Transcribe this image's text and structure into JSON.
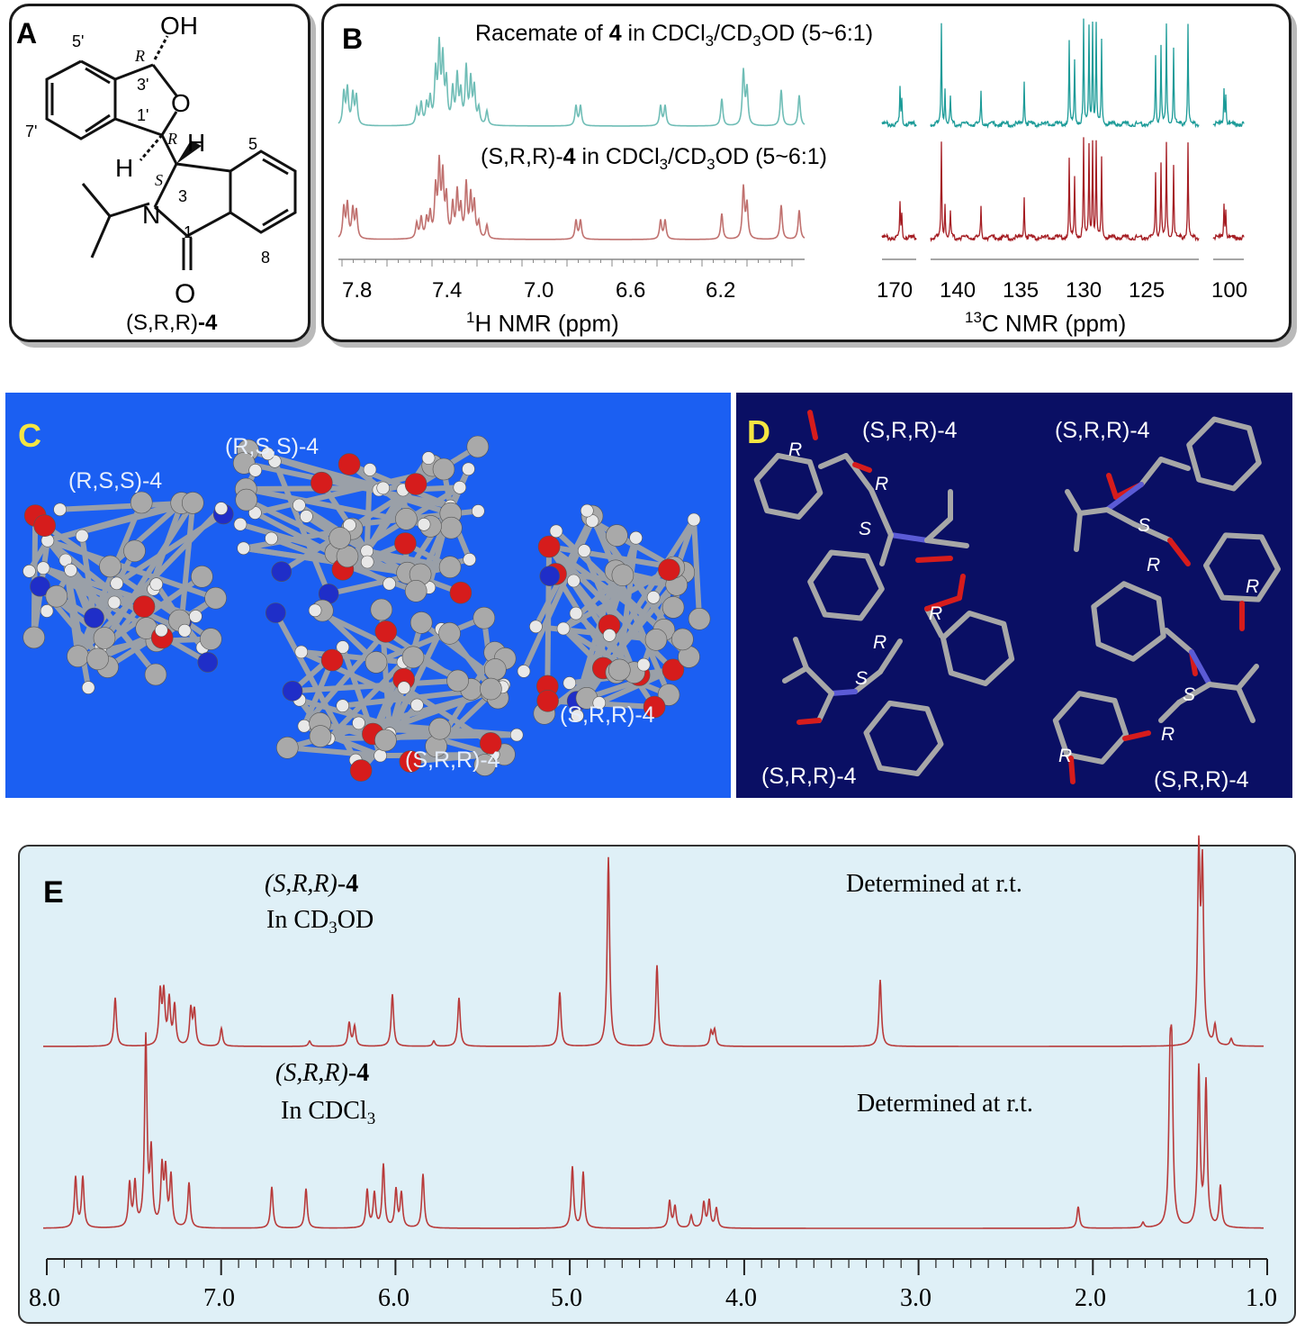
{
  "panel_a": {
    "label": "A",
    "oh": "OH",
    "o": "O",
    "n": "N",
    "h1": "H",
    "h2": "H",
    "carbonyl_o": "O",
    "stereo_r1": "R",
    "stereo_r2": "R",
    "stereo_s": "S",
    "num_5p": "5'",
    "num_3p": "3'",
    "num_1p": "1'",
    "num_7p": "7'",
    "num_3": "3",
    "num_1": "1",
    "num_5": "5",
    "num_8": "8",
    "caption_prefix": "(S,R,R)",
    "caption_suffix": "-4"
  },
  "panel_b": {
    "label": "B",
    "title_top_pre": "Racemate of ",
    "title_top_bold": "4",
    "title_top_post": " in CDCl",
    "title_top_sub1": "3",
    "title_top_post2": "/CD",
    "title_top_sub2": "3",
    "title_top_post3": "OD (5~6:1)",
    "title_mid_pre": "(S,R,R)-",
    "title_mid_bold": "4",
    "title_mid_post": " in CDCl",
    "title_mid_sub1": "3",
    "title_mid_post2": "/CD",
    "title_mid_sub2": "3",
    "title_mid_post3": "OD (5~6:1)",
    "h_axis_ticks": [
      "7.8",
      "7.4",
      "7.0",
      "6.6",
      "6.2"
    ],
    "h_axis_label_sup": "1",
    "h_axis_label": "H NMR (ppm)",
    "c_axis_ticks": [
      "170",
      "140",
      "135",
      "130",
      "125",
      "100"
    ],
    "c_axis_label_sup": "13",
    "c_axis_label": "C NMR (ppm)",
    "color_top": "#6fbdb6",
    "color_bottom": "#c0716f",
    "color_c_top": "#1c9b98",
    "color_c_bottom": "#a51d23"
  },
  "panel_c": {
    "label": "C",
    "mol_labels": [
      "(R,S,S)-4",
      "(R,S,S)-4",
      "(S,R,R)-4",
      "(S,R,R)-4"
    ]
  },
  "panel_d": {
    "label": "D",
    "mol_labels": [
      "(S,R,R)-4",
      "(S,R,R)-4",
      "(S,R,R)-4",
      "(S,R,R)-4"
    ],
    "stereo_letters": [
      "R",
      "R",
      "S",
      "R",
      "R",
      "S",
      "S",
      "R",
      "R",
      "R",
      "S",
      "R"
    ]
  },
  "panel_e": {
    "label": "E",
    "top_name_pre": "(S,R,R)-",
    "top_name_bold": "4",
    "top_solvent_pre": "In CD",
    "top_solvent_sub": "3",
    "top_solvent_post": "OD",
    "top_note": "Determined at r.t.",
    "bottom_name_pre": "(S,R,R)-",
    "bottom_name_bold": "4",
    "bottom_solvent_pre": "In CDCl",
    "bottom_solvent_sub": "3",
    "bottom_note": "Determined at r.t.",
    "axis_ticks": [
      "8.0",
      "7.0",
      "6.0",
      "5.0",
      "4.0",
      "3.0",
      "2.0",
      "1.0"
    ],
    "trace_color": "#b83a3a"
  }
}
